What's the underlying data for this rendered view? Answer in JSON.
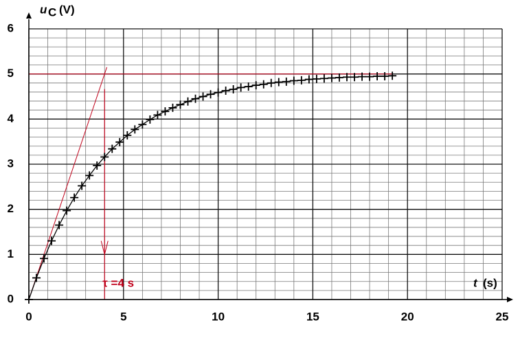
{
  "chart_data": {
    "type": "scatter",
    "x_label": "t",
    "x_unit": "(s)",
    "y_label": "u",
    "y_label_sub": "C",
    "y_unit": "(V)",
    "x": [
      0,
      0.4,
      0.8,
      1.2,
      1.6,
      2.0,
      2.4,
      2.8,
      3.2,
      3.6,
      4.0,
      4.4,
      4.8,
      5.2,
      5.6,
      6.0,
      6.4,
      6.8,
      7.2,
      7.6,
      8.0,
      8.4,
      8.8,
      9.2,
      9.6,
      10.0,
      10.4,
      10.8,
      11.2,
      11.6,
      12.0,
      12.4,
      12.8,
      13.2,
      13.6,
      14.0,
      14.4,
      14.8,
      15.2,
      15.6,
      16.0,
      16.4,
      16.8,
      17.2,
      17.6,
      18.0,
      18.4,
      18.8,
      19.2
    ],
    "series": [
      {
        "name": "uC",
        "color": "#000000",
        "values": [
          0,
          0.48,
          0.91,
          1.3,
          1.65,
          1.97,
          2.26,
          2.52,
          2.75,
          2.97,
          3.16,
          3.34,
          3.49,
          3.64,
          3.77,
          3.88,
          3.99,
          4.09,
          4.17,
          4.25,
          4.32,
          4.39,
          4.45,
          4.5,
          4.55,
          4.59,
          4.63,
          4.66,
          4.7,
          4.72,
          4.75,
          4.77,
          4.8,
          4.82,
          4.83,
          4.85,
          4.86,
          4.88,
          4.89,
          4.9,
          4.91,
          4.92,
          4.93,
          4.93,
          4.94,
          4.94,
          4.95,
          4.95,
          4.96
        ]
      }
    ],
    "xlim": [
      0,
      25
    ],
    "ylim": [
      0,
      6
    ],
    "xticks": [
      0,
      5,
      10,
      15,
      20,
      25
    ],
    "yticks": [
      0,
      1,
      2,
      3,
      4,
      5,
      6
    ],
    "grid": true,
    "annotations": {
      "tau": 4,
      "final_value": 5,
      "label": "τ =4 s",
      "color": "#c0001a"
    }
  }
}
